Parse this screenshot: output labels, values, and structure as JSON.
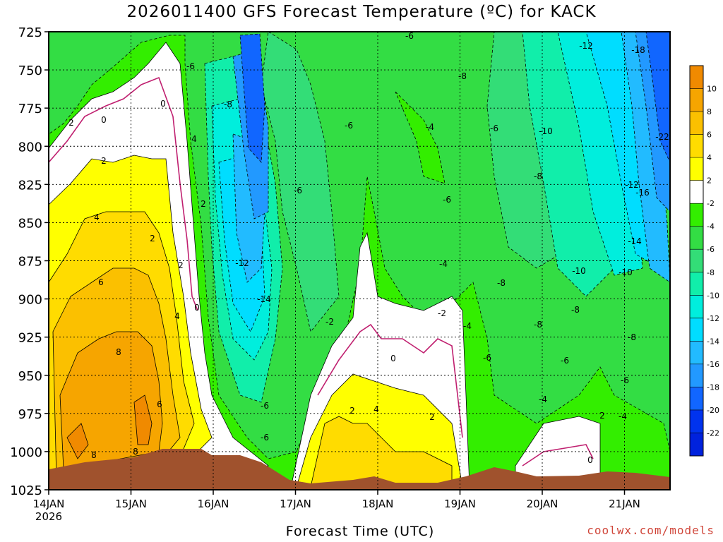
{
  "chart_data": {
    "type": "heatmap",
    "title": "2026011400 GFS Forecast Temperature (ºC) for KACK",
    "xlabel": "Forecast Time (UTC)",
    "ylabel": "",
    "x_ticks": [
      "14JAN",
      "15JAN",
      "16JAN",
      "17JAN",
      "18JAN",
      "19JAN",
      "20JAN",
      "21JAN"
    ],
    "x_year": "2026",
    "y_ticks": [
      725,
      750,
      775,
      800,
      825,
      850,
      875,
      900,
      925,
      950,
      975,
      1000,
      1025
    ],
    "ylim": [
      1025,
      725
    ],
    "y_inverted": true,
    "colorbar_ticks": [
      10,
      8,
      6,
      4,
      2,
      -2,
      -4,
      -6,
      -8,
      -10,
      -12,
      -14,
      -16,
      -18,
      -20,
      -22
    ],
    "colorbar_colors": [
      "#f08a00",
      "#f6a500",
      "#fbc000",
      "#ffdc00",
      "#ffff00",
      "#ffffff",
      "#33ee00",
      "#33dd44",
      "#33dd77",
      "#11eeaa",
      "#00eedd",
      "#00ddff",
      "#22bbff",
      "#2299ff",
      "#1166ff",
      "#0033ee",
      "#0022dd"
    ],
    "terrain_color": "#a0522d",
    "contour_labels": [
      "0",
      "2",
      "4",
      "6",
      "8",
      "-2",
      "-4",
      "-6",
      "-8",
      "-10",
      "-12",
      "-14",
      "-16",
      "-18",
      "-22"
    ],
    "grid": true,
    "legend": "right"
  },
  "credit": "coolwx.com/models"
}
